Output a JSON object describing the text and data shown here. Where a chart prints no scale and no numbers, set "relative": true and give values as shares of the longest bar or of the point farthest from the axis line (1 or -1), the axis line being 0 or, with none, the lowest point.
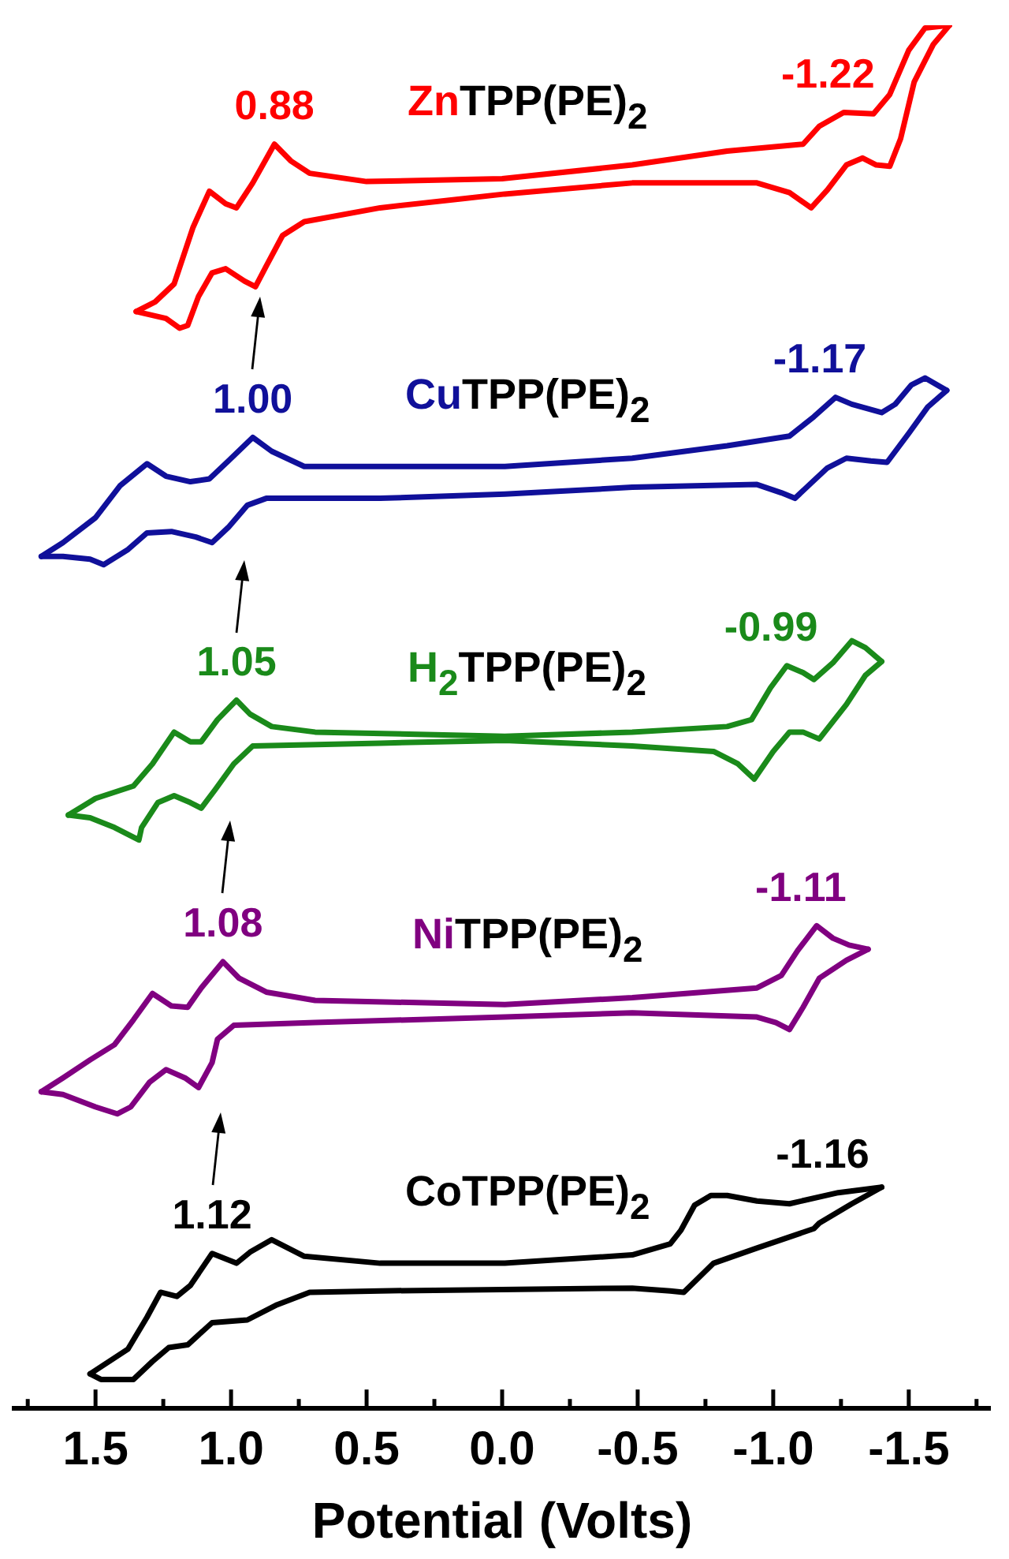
{
  "chart_data": {
    "type": "line",
    "relative": true,
    "xlabel": "Potential (Volts)",
    "xlim": [
      1.8,
      -1.8
    ],
    "xticks": [
      {
        "value": 1.75,
        "label": null
      },
      1.5,
      {
        "value": 1.25,
        "label": null
      },
      {
        "value": 1,
        "label": "1.0"
      },
      {
        "value": 0.75,
        "label": null
      },
      0.5,
      {
        "value": 0.25,
        "label": null
      },
      {
        "value": 0,
        "label": "0.0"
      },
      {
        "value": -0.25,
        "label": null
      },
      -0.5,
      {
        "value": -0.75,
        "label": null
      },
      {
        "value": -1,
        "label": "-1.0"
      },
      {
        "value": -1.25,
        "label": null
      },
      -1.5,
      {
        "value": -1.75,
        "label": null
      }
    ],
    "series": [
      {
        "name": "ZnTPP(PE)$_{2}$",
        "color": "#ff0000",
        "x": [
          1.35,
          1.28,
          1.21,
          1.14,
          1.08,
          1.02,
          0.98,
          0.92,
          0.84,
          0.78,
          0.71,
          0.5,
          0.0,
          -0.48,
          -0.83,
          -1.11,
          -1.17,
          -1.26,
          -1.37,
          -1.43,
          -1.5,
          -1.56,
          -1.65
        ],
        "values": [
          0.793,
          0.8,
          0.813,
          0.854,
          0.88,
          0.871,
          0.868,
          0.886,
          0.914,
          0.902,
          0.893,
          0.887,
          0.889,
          0.899,
          0.909,
          0.914,
          0.927,
          0.937,
          0.936,
          0.95,
          0.982,
          0.998,
          1.0
        ]
      },
      {
        "color": "#ff0000",
        "x": [
          -1.65,
          -1.59,
          -1.52,
          -1.47,
          -1.43,
          -1.38,
          -1.33,
          -1.27,
          -1.2,
          -1.14,
          -1.06,
          -0.94,
          -0.48,
          -0.01,
          0.45,
          0.73,
          0.81,
          0.87,
          0.91,
          0.95,
          1.02,
          1.07,
          1.12,
          1.16,
          1.19,
          1.24,
          1.35
        ],
        "values": [
          1.0,
          0.986,
          0.959,
          0.918,
          0.898,
          0.899,
          0.904,
          0.899,
          0.881,
          0.868,
          0.879,
          0.886,
          0.886,
          0.878,
          0.868,
          0.858,
          0.848,
          0.826,
          0.811,
          0.815,
          0.824,
          0.821,
          0.804,
          0.783,
          0.781,
          0.788,
          0.793
        ]
      },
      {
        "name": "CuTPP(PE)$_{2}$",
        "color": "#10109a",
        "x": [
          1.7,
          1.62,
          1.5,
          1.41,
          1.31,
          1.24,
          1.15,
          1.08,
          1.01,
          0.92,
          0.85,
          0.73,
          0.45,
          -0.01,
          -0.48,
          -0.83,
          -1.06,
          -1.15,
          -1.23,
          -1.29,
          -1.4,
          -1.45,
          -1.51,
          -1.56,
          -1.64
        ],
        "values": [
          0.616,
          0.626,
          0.644,
          0.667,
          0.683,
          0.674,
          0.67,
          0.672,
          0.685,
          0.702,
          0.692,
          0.681,
          0.681,
          0.681,
          0.687,
          0.696,
          0.703,
          0.717,
          0.731,
          0.726,
          0.72,
          0.726,
          0.74,
          0.745,
          0.736
        ]
      },
      {
        "color": "#10109a",
        "x": [
          -1.64,
          -1.57,
          -1.5,
          -1.42,
          -1.36,
          -1.27,
          -1.2,
          -1.14,
          -1.08,
          -1.03,
          -0.94,
          -0.48,
          -0.01,
          0.45,
          0.87,
          0.94,
          1.01,
          1.07,
          1.13,
          1.22,
          1.31,
          1.38,
          1.47,
          1.52,
          1.62,
          1.7
        ],
        "values": [
          0.736,
          0.724,
          0.705,
          0.684,
          0.685,
          0.687,
          0.68,
          0.669,
          0.658,
          0.662,
          0.668,
          0.666,
          0.661,
          0.658,
          0.658,
          0.653,
          0.637,
          0.626,
          0.63,
          0.634,
          0.633,
          0.621,
          0.61,
          0.614,
          0.616,
          0.616
        ]
      },
      {
        "name": "H$_{2}$TPP(PE)$_{2}$",
        "color": "#1a8a1a",
        "x": [
          1.6,
          1.5,
          1.36,
          1.29,
          1.21,
          1.15,
          1.11,
          1.05,
          0.98,
          0.93,
          0.85,
          0.69,
          -0.01,
          -0.48,
          -0.83,
          -0.92,
          -0.99,
          -1.05,
          -1.11,
          -1.15,
          -1.22,
          -1.29,
          -1.34,
          -1.4
        ],
        "values": [
          0.429,
          0.441,
          0.45,
          0.466,
          0.489,
          0.482,
          0.482,
          0.498,
          0.512,
          0.502,
          0.493,
          0.489,
          0.486,
          0.489,
          0.493,
          0.498,
          0.521,
          0.537,
          0.532,
          0.527,
          0.539,
          0.555,
          0.55,
          0.54
        ]
      },
      {
        "color": "#1a8a1a",
        "x": [
          -1.4,
          -1.34,
          -1.27,
          -1.17,
          -1.11,
          -1.06,
          -1.0,
          -0.93,
          -0.87,
          -0.78,
          -0.48,
          -0.01,
          0.45,
          0.92,
          0.99,
          1.06,
          1.11,
          1.15,
          1.21,
          1.27,
          1.33,
          1.34,
          1.43,
          1.52,
          1.6
        ],
        "values": [
          0.54,
          0.53,
          0.509,
          0.484,
          0.489,
          0.489,
          0.475,
          0.455,
          0.466,
          0.475,
          0.479,
          0.483,
          0.481,
          0.479,
          0.466,
          0.447,
          0.434,
          0.438,
          0.443,
          0.438,
          0.42,
          0.411,
          0.42,
          0.427,
          0.429
        ]
      },
      {
        "name": "NiTPP(PE)$_{2}$",
        "color": "#800080",
        "x": [
          1.7,
          1.62,
          1.52,
          1.43,
          1.36,
          1.29,
          1.22,
          1.16,
          1.11,
          1.03,
          0.97,
          0.87,
          0.69,
          -0.01,
          -0.48,
          -0.94,
          -1.03,
          -1.09,
          -1.16,
          -1.22,
          -1.28,
          -1.35
        ],
        "values": [
          0.229,
          0.239,
          0.252,
          0.263,
          0.281,
          0.3,
          0.291,
          0.29,
          0.304,
          0.323,
          0.311,
          0.301,
          0.295,
          0.292,
          0.297,
          0.304,
          0.313,
          0.331,
          0.349,
          0.34,
          0.335,
          0.332
        ]
      },
      {
        "color": "#800080",
        "x": [
          -1.35,
          -1.27,
          -1.17,
          -1.11,
          -1.06,
          -1.01,
          -0.94,
          -0.48,
          -0.01,
          0.69,
          0.99,
          1.05,
          1.07,
          1.12,
          1.17,
          1.24,
          1.3,
          1.37,
          1.42,
          1.5,
          1.62,
          1.7
        ],
        "values": [
          0.332,
          0.324,
          0.311,
          0.29,
          0.274,
          0.279,
          0.283,
          0.286,
          0.283,
          0.279,
          0.277,
          0.267,
          0.25,
          0.232,
          0.239,
          0.245,
          0.236,
          0.218,
          0.213,
          0.218,
          0.227,
          0.229
        ]
      },
      {
        "name": "CoTPP(PE)$_{2}$",
        "color": "#000000",
        "x": [
          -1.4,
          -1.24,
          -1.06,
          -0.94,
          -0.83,
          -0.77,
          -0.71,
          -0.66,
          -0.62,
          -0.48,
          -0.01,
          0.45,
          0.73,
          0.85,
          0.93,
          0.98,
          1.07,
          1.15,
          1.2,
          1.26,
          1.31,
          1.38,
          1.52
        ],
        "values": [
          0.16,
          0.156,
          0.148,
          0.15,
          0.154,
          0.154,
          0.147,
          0.129,
          0.119,
          0.111,
          0.105,
          0.105,
          0.11,
          0.122,
          0.113,
          0.105,
          0.112,
          0.089,
          0.081,
          0.084,
          0.066,
          0.043,
          0.025
        ]
      },
      {
        "color": "#000000",
        "x": [
          1.52,
          1.48,
          1.36,
          1.29,
          1.23,
          1.16,
          1.07,
          0.94,
          0.83,
          0.71,
          0.45,
          -0.48,
          -0.62,
          -0.67,
          -0.78,
          -0.94,
          -1.15,
          -1.17,
          -1.29,
          -1.4
        ],
        "values": [
          0.025,
          0.021,
          0.021,
          0.034,
          0.044,
          0.046,
          0.062,
          0.064,
          0.075,
          0.084,
          0.085,
          0.087,
          0.085,
          0.084,
          0.105,
          0.116,
          0.13,
          0.134,
          0.148,
          0.16
        ]
      }
    ],
    "annotations": [
      {
        "text": "0.88",
        "x": 0.84,
        "y": 0.914
      },
      {
        "text": "-1.22",
        "x": -1.26,
        "y": 0.937
      },
      {
        "text": "1.00",
        "x": 0.92,
        "y": 0.702
      },
      {
        "text": "-1.17",
        "x": -1.23,
        "y": 0.731
      },
      {
        "text": "1.05",
        "x": 0.98,
        "y": 0.512
      },
      {
        "text": "-0.99",
        "x": -1.05,
        "y": 0.537
      },
      {
        "text": "1.08",
        "x": 1.03,
        "y": 0.323
      },
      {
        "text": "-1.11",
        "x": -1.16,
        "y": 0.349
      },
      {
        "text": "1.12",
        "x": 1.07,
        "y": 0.112
      },
      {
        "text": "-1.16",
        "x": -1.24,
        "y": 0.156
      }
    ]
  }
}
